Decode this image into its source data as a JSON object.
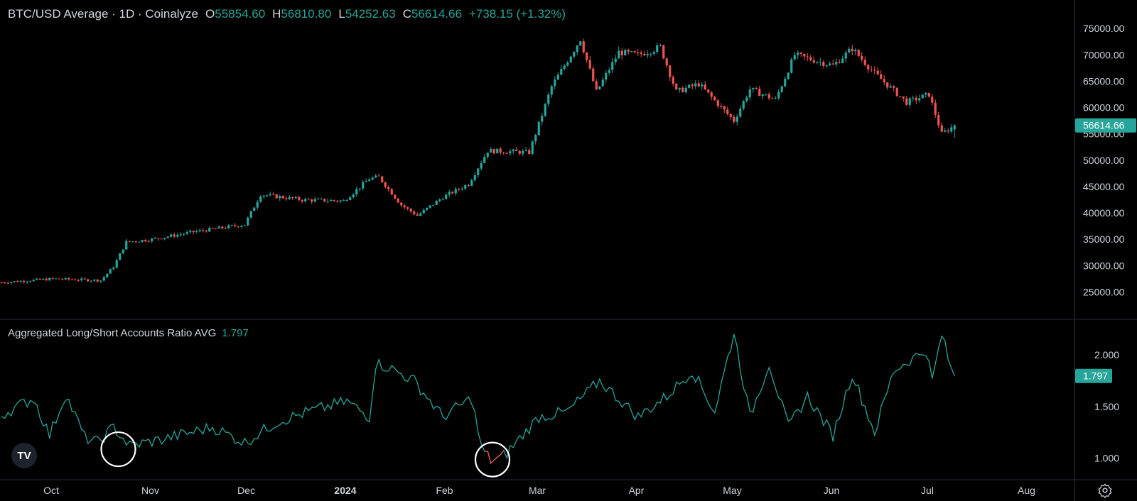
{
  "header": {
    "title": "BTC/USD Average · 1D · Coinalyze",
    "open_label": "O",
    "open": "55854.60",
    "high_label": "H",
    "high": "56810.80",
    "low_label": "L",
    "low": "54252.63",
    "close_label": "C",
    "close": "56614.66",
    "change": "+738.15 (+1.32%)"
  },
  "colors": {
    "up": "#26a69a",
    "down": "#ef5350",
    "background": "#000000",
    "text": "#d1d4dc",
    "divider": "#2a2e39"
  },
  "chart_data": [
    {
      "type": "candlestick",
      "title": "BTC/USD Average · 1D · Coinalyze",
      "y_ticks": [
        25000,
        30000,
        35000,
        40000,
        45000,
        50000,
        55000,
        60000,
        65000,
        70000,
        75000
      ],
      "y_tick_labels": [
        "25000.00",
        "30000.00",
        "35000.00",
        "40000.00",
        "45000.00",
        "50000.00",
        "55000.00",
        "60000.00",
        "65000.00",
        "70000.00",
        "75000.00"
      ],
      "last_value": 56614.66,
      "last_value_label": "56614.66",
      "x_start": "2023-09-15",
      "x_end": "2024-07-10",
      "keypoints": [
        [
          "2023-09-15",
          26800
        ],
        [
          "2023-10-01",
          27500
        ],
        [
          "2023-10-16",
          27200
        ],
        [
          "2023-10-20",
          29800
        ],
        [
          "2023-10-24",
          34500
        ],
        [
          "2023-11-01",
          35000
        ],
        [
          "2023-11-15",
          36500
        ],
        [
          "2023-11-30",
          37800
        ],
        [
          "2023-12-05",
          43500
        ],
        [
          "2023-12-18",
          42500
        ],
        [
          "2023-12-31",
          42300
        ],
        [
          "2024-01-08",
          46500
        ],
        [
          "2024-01-11",
          46800
        ],
        [
          "2024-01-18",
          41500
        ],
        [
          "2024-01-23",
          39500
        ],
        [
          "2024-01-31",
          43000
        ],
        [
          "2024-02-08",
          45500
        ],
        [
          "2024-02-14",
          51800
        ],
        [
          "2024-02-27",
          51500
        ],
        [
          "2024-03-05",
          64000
        ],
        [
          "2024-03-14",
          73000
        ],
        [
          "2024-03-19",
          63000
        ],
        [
          "2024-03-26",
          70500
        ],
        [
          "2024-04-01",
          70000
        ],
        [
          "2024-04-08",
          71500
        ],
        [
          "2024-04-13",
          63000
        ],
        [
          "2024-04-20",
          64500
        ],
        [
          "2024-05-01",
          57500
        ],
        [
          "2024-05-06",
          63500
        ],
        [
          "2024-05-14",
          61500
        ],
        [
          "2024-05-20",
          70000
        ],
        [
          "2024-06-01",
          68000
        ],
        [
          "2024-06-07",
          71200
        ],
        [
          "2024-06-14",
          66500
        ],
        [
          "2024-06-24",
          61000
        ],
        [
          "2024-07-01",
          62500
        ],
        [
          "2024-07-05",
          55000
        ],
        [
          "2024-07-09",
          56614.66
        ]
      ]
    },
    {
      "type": "line",
      "series": [
        {
          "name": "Aggregated Long/Short Accounts Ratio AVG",
          "last": 1.797
        }
      ],
      "y_ticks": [
        1.0,
        1.5,
        2.0
      ],
      "y_tick_labels": [
        "1.000",
        "1.500",
        "2.000"
      ],
      "last_value": 1.797,
      "last_value_label": "1.797",
      "keypoints": [
        [
          "2023-09-15",
          1.42
        ],
        [
          "2023-09-25",
          1.58
        ],
        [
          "2023-09-30",
          1.22
        ],
        [
          "2023-10-05",
          1.62
        ],
        [
          "2023-10-11",
          1.2
        ],
        [
          "2023-10-15",
          1.15
        ],
        [
          "2023-10-20",
          1.3
        ],
        [
          "2023-10-25",
          1.12
        ],
        [
          "2023-11-04",
          1.18
        ],
        [
          "2023-11-20",
          1.3
        ],
        [
          "2023-11-30",
          1.15
        ],
        [
          "2023-12-10",
          1.35
        ],
        [
          "2023-12-20",
          1.45
        ],
        [
          "2024-01-01",
          1.55
        ],
        [
          "2024-01-08",
          1.4
        ],
        [
          "2024-01-10",
          1.92
        ],
        [
          "2024-01-14",
          1.88
        ],
        [
          "2024-01-22",
          1.75
        ],
        [
          "2024-01-31",
          1.4
        ],
        [
          "2024-02-09",
          1.58
        ],
        [
          "2024-02-12",
          1.1
        ],
        [
          "2024-02-15",
          0.98
        ],
        [
          "2024-02-18",
          1.0
        ],
        [
          "2024-02-20",
          1.05
        ],
        [
          "2024-03-01",
          1.4
        ],
        [
          "2024-03-10",
          1.45
        ],
        [
          "2024-03-20",
          1.75
        ],
        [
          "2024-04-01",
          1.4
        ],
        [
          "2024-04-10",
          1.6
        ],
        [
          "2024-04-18",
          1.85
        ],
        [
          "2024-04-25",
          1.45
        ],
        [
          "2024-05-01",
          2.22
        ],
        [
          "2024-05-06",
          1.4
        ],
        [
          "2024-05-12",
          1.92
        ],
        [
          "2024-05-18",
          1.3
        ],
        [
          "2024-05-24",
          1.6
        ],
        [
          "2024-06-01",
          1.22
        ],
        [
          "2024-06-07",
          1.82
        ],
        [
          "2024-06-14",
          1.25
        ],
        [
          "2024-06-20",
          1.85
        ],
        [
          "2024-06-25",
          1.95
        ],
        [
          "2024-06-30",
          2.05
        ],
        [
          "2024-07-02",
          1.75
        ],
        [
          "2024-07-05",
          2.2
        ],
        [
          "2024-07-08",
          1.85
        ],
        [
          "2024-07-09",
          1.797
        ]
      ],
      "highlighted_low_range": [
        "2024-02-13",
        "2024-02-19"
      ]
    }
  ],
  "x_axis": {
    "labels": [
      {
        "text": "Oct",
        "date": "2023-10-01",
        "bold": false
      },
      {
        "text": "Nov",
        "date": "2023-11-01",
        "bold": false
      },
      {
        "text": "Dec",
        "date": "2023-12-01",
        "bold": false
      },
      {
        "text": "2024",
        "date": "2024-01-01",
        "bold": true
      },
      {
        "text": "Feb",
        "date": "2024-02-01",
        "bold": false
      },
      {
        "text": "Mar",
        "date": "2024-03-01",
        "bold": false
      },
      {
        "text": "Apr",
        "date": "2024-04-01",
        "bold": false
      },
      {
        "text": "May",
        "date": "2024-05-01",
        "bold": false
      },
      {
        "text": "Jun",
        "date": "2024-06-01",
        "bold": false
      },
      {
        "text": "Jul",
        "date": "2024-07-01",
        "bold": false
      },
      {
        "text": "Aug",
        "date": "2024-08-01",
        "bold": false
      }
    ]
  },
  "annotations": [
    {
      "type": "circle",
      "date": "2023-10-22",
      "value": 1.1
    },
    {
      "type": "circle",
      "date": "2024-02-16",
      "value": 1.0
    }
  ],
  "icons": {
    "logo": "tradingview-logo-icon",
    "settings": "gear-icon"
  },
  "logo_text": "TV"
}
